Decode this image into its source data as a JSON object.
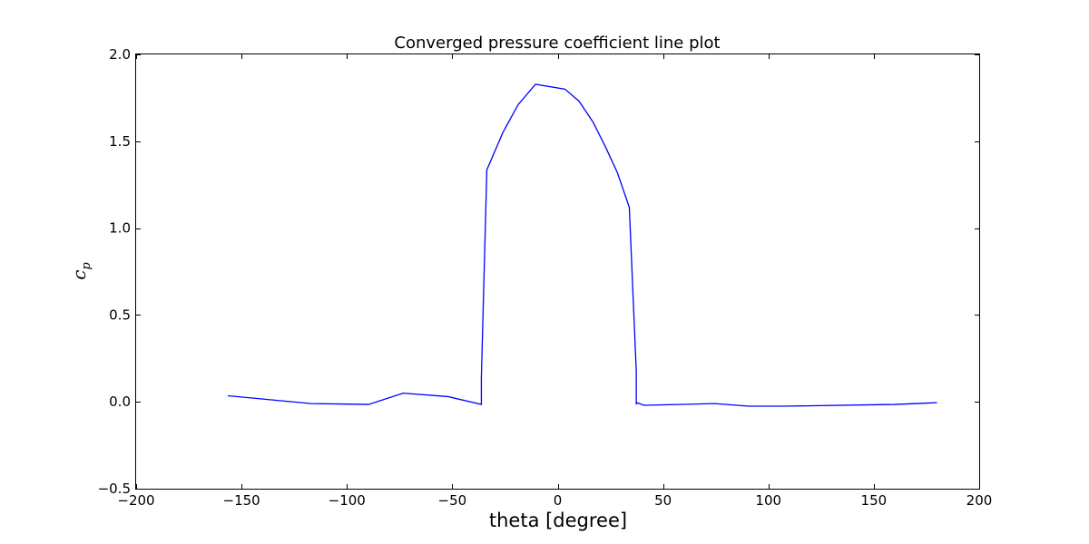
{
  "chart_data": {
    "type": "line",
    "title": "Converged pressure coefficient line plot",
    "xlabel": "theta [degree]",
    "ylabel": "c",
    "ylabel_sub": "p",
    "xlim": [
      -200,
      200
    ],
    "ylim": [
      -0.5,
      2.0
    ],
    "xticks": [
      -200,
      -150,
      -100,
      -50,
      0,
      50,
      100,
      150,
      200
    ],
    "yticks": [
      -0.5,
      0.0,
      0.5,
      1.0,
      1.5,
      2.0
    ],
    "xtick_labels": [
      "−200",
      "−150",
      "−100",
      "−50",
      "0",
      "50",
      "100",
      "150",
      "200"
    ],
    "ytick_labels": [
      "−0.5",
      "0.0",
      "0.5",
      "1.0",
      "1.5",
      "2.0"
    ],
    "grid": false,
    "series": [
      {
        "color": "#0000ff",
        "x": [
          -156.5,
          -117.0,
          -89.7,
          -73.3,
          -52.0,
          -36.2,
          -36.2,
          -33.6,
          -26.0,
          -18.8,
          -10.5,
          3.5,
          10.2,
          16.8,
          22.6,
          28.3,
          34.0,
          37.3,
          37.3,
          37.5,
          41.0,
          74.5,
          90.7,
          107.5,
          159.8,
          180.0
        ],
        "y": [
          0.035,
          -0.01,
          -0.015,
          0.05,
          0.03,
          -0.015,
          0.14,
          1.335,
          1.55,
          1.71,
          1.828,
          1.8,
          1.73,
          1.61,
          1.47,
          1.32,
          1.12,
          0.175,
          -0.015,
          -0.005,
          -0.02,
          -0.01,
          -0.025,
          -0.025,
          -0.015,
          -0.005
        ]
      }
    ]
  }
}
